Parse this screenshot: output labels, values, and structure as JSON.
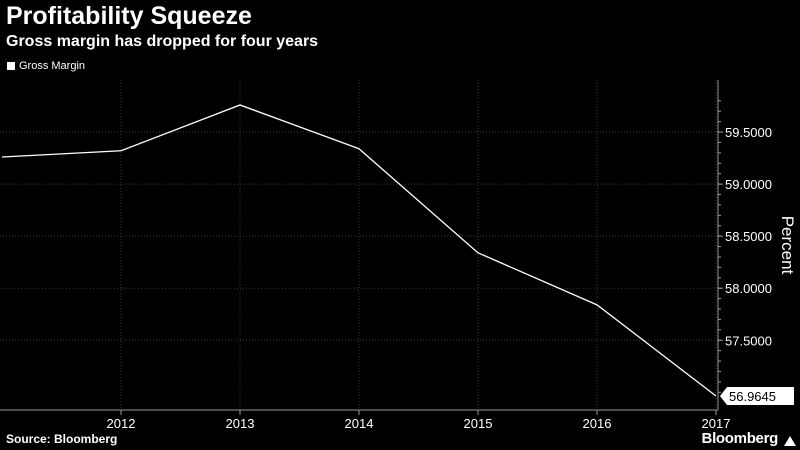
{
  "header": {
    "title": "Profitability Squeeze",
    "subtitle": "Gross margin has dropped for four years"
  },
  "footer": {
    "source": "Source: Bloomberg",
    "brand": "Bloomberg"
  },
  "colors": {
    "background": "#000000",
    "series": "#ffffff"
  },
  "chart_data": {
    "type": "line",
    "title": "Profitability Squeeze",
    "subtitle": "Gross margin has dropped for four years",
    "xlabel": "",
    "ylabel": "Percent",
    "legend": {
      "entries": [
        "Gross Margin"
      ],
      "placement": "top-left"
    },
    "x_ticks": [
      "2012",
      "2013",
      "2014",
      "2015",
      "2016",
      "2017"
    ],
    "y_ticks": [
      "57.5000",
      "58.0000",
      "58.5000",
      "59.0000",
      "59.5000"
    ],
    "ylim": [
      56.83,
      60.0
    ],
    "grid": true,
    "series": [
      {
        "name": "Gross Margin",
        "x": [
          "2011",
          "2012",
          "2013",
          "2014",
          "2015",
          "2016",
          "2017"
        ],
        "values": [
          59.26,
          59.32,
          59.76,
          59.34,
          58.34,
          57.84,
          56.9645
        ]
      }
    ],
    "last_value_label": "56.9645"
  }
}
